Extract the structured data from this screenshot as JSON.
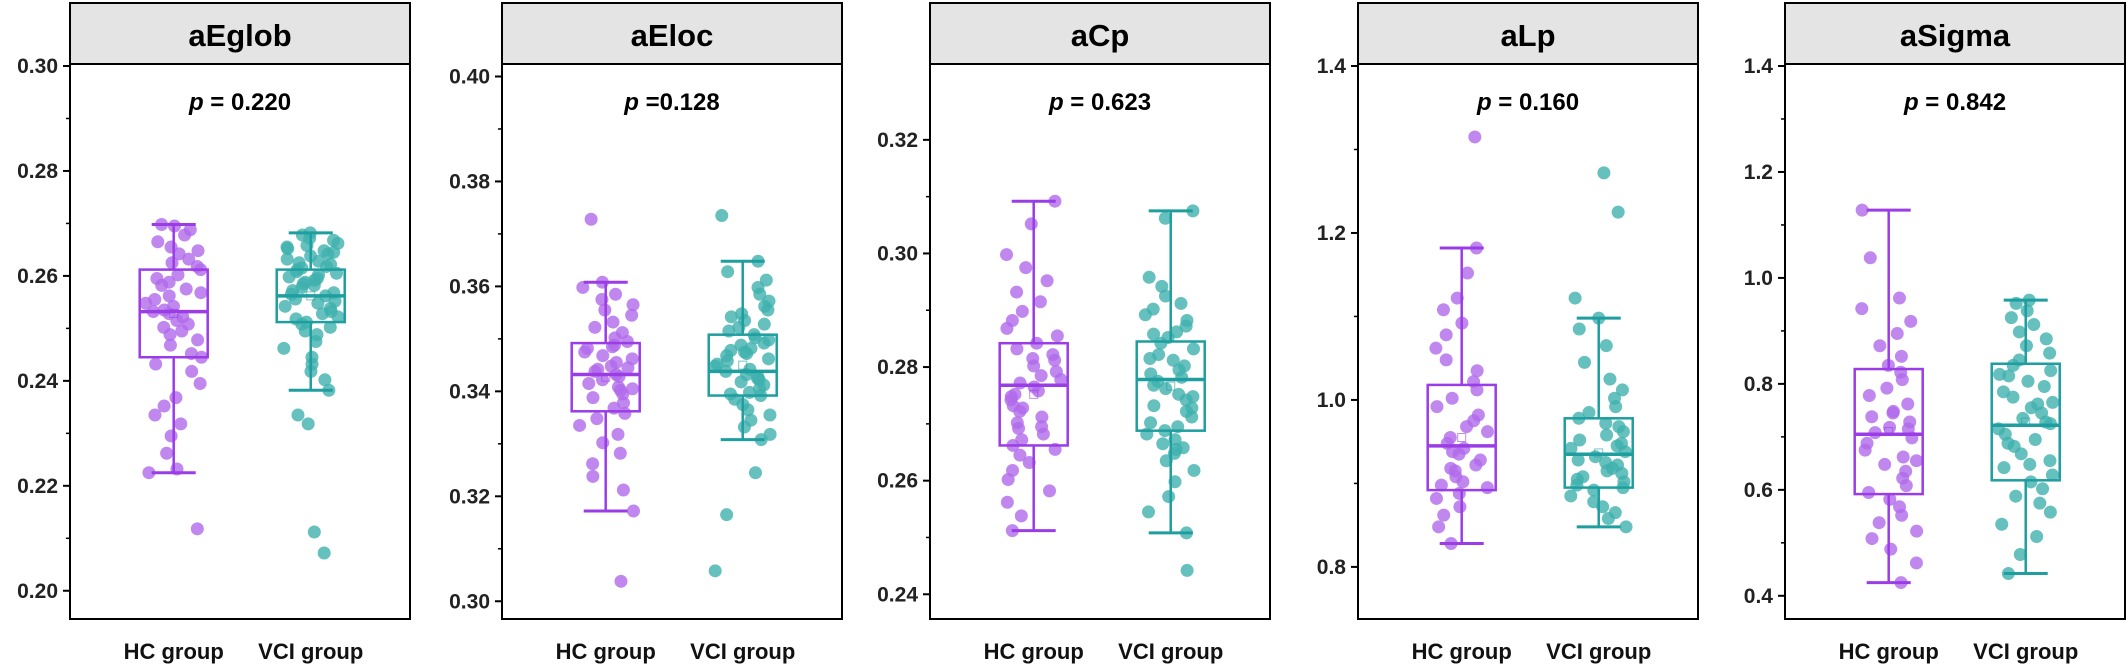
{
  "chart_data": [
    {
      "type": "box",
      "title": "aEglob",
      "p_label": "p",
      "p_value": "= 0.220",
      "categories": [
        "HC group",
        "VCI group"
      ],
      "ylim": [
        0.195,
        0.3
      ],
      "yticks": [
        "0.20",
        "0.22",
        "0.24",
        "0.26",
        "0.28",
        "0.30"
      ],
      "series": [
        {
          "q1": 0.2445,
          "median": 0.2532,
          "q3": 0.2612,
          "wlo": 0.2225,
          "whi": 0.2698,
          "points": [
            0.2118,
            0.2225,
            0.2232,
            0.2262,
            0.2295,
            0.2318,
            0.2335,
            0.2352,
            0.2368,
            0.2395,
            0.2418,
            0.2432,
            0.2445,
            0.2452,
            0.2468,
            0.2478,
            0.2488,
            0.2495,
            0.2502,
            0.2508,
            0.2515,
            0.2522,
            0.2528,
            0.2532,
            0.2535,
            0.2542,
            0.2548,
            0.2555,
            0.2562,
            0.2568,
            0.2575,
            0.2582,
            0.2588,
            0.2595,
            0.2602,
            0.2612,
            0.2618,
            0.2625,
            0.2632,
            0.2642,
            0.2648,
            0.2655,
            0.2665,
            0.2678,
            0.2688,
            0.2698,
            0.2695
          ]
        },
        {
          "q1": 0.2512,
          "median": 0.2562,
          "q3": 0.2612,
          "wlo": 0.2382,
          "whi": 0.2682,
          "points": [
            0.2072,
            0.2112,
            0.2318,
            0.2335,
            0.2382,
            0.2402,
            0.2418,
            0.2432,
            0.2445,
            0.2462,
            0.2475,
            0.2488,
            0.2495,
            0.2502,
            0.2508,
            0.2512,
            0.2518,
            0.2522,
            0.2528,
            0.2532,
            0.2538,
            0.2542,
            0.2548,
            0.2552,
            0.2556,
            0.2562,
            0.2565,
            0.2568,
            0.2572,
            0.2578,
            0.2582,
            0.2585,
            0.2588,
            0.2592,
            0.2598,
            0.2602,
            0.2605,
            0.2608,
            0.2612,
            0.2618,
            0.2622,
            0.2628,
            0.2632,
            0.2638,
            0.2642,
            0.2648,
            0.2652,
            0.2658,
            0.2662,
            0.2668,
            0.2672,
            0.2678,
            0.2682,
            0.2655,
            0.2645,
            0.2625,
            0.2615,
            0.2595
          ]
        }
      ]
    },
    {
      "type": "box",
      "title": "aEloc",
      "p_label": "p",
      "p_value": "=0.128",
      "categories": [
        "HC group",
        "VCI group"
      ],
      "ylim": [
        0.297,
        0.402
      ],
      "yticks": [
        "0.30",
        "0.32",
        "0.34",
        "0.36",
        "0.38",
        "0.40"
      ],
      "series": [
        {
          "q1": 0.3362,
          "median": 0.3432,
          "q3": 0.3492,
          "wlo": 0.3172,
          "whi": 0.3608,
          "points": [
            0.3038,
            0.3172,
            0.3212,
            0.3238,
            0.3262,
            0.3282,
            0.3302,
            0.3318,
            0.3335,
            0.3348,
            0.3358,
            0.3368,
            0.3378,
            0.3388,
            0.3395,
            0.3402,
            0.3408,
            0.3415,
            0.3422,
            0.3428,
            0.3432,
            0.3438,
            0.3442,
            0.3448,
            0.3455,
            0.3462,
            0.3468,
            0.3475,
            0.3482,
            0.3488,
            0.3495,
            0.3502,
            0.3512,
            0.3522,
            0.3532,
            0.3545,
            0.3555,
            0.3565,
            0.3575,
            0.3585,
            0.3598,
            0.3608,
            0.3728,
            0.3445,
            0.3405,
            0.3485
          ]
        },
        {
          "q1": 0.3392,
          "median": 0.3438,
          "q3": 0.3508,
          "wlo": 0.3308,
          "whi": 0.3648,
          "points": [
            0.3058,
            0.3165,
            0.3245,
            0.3308,
            0.3318,
            0.3332,
            0.3345,
            0.3355,
            0.3365,
            0.3375,
            0.3385,
            0.3392,
            0.3398,
            0.3405,
            0.3412,
            0.3418,
            0.3422,
            0.3428,
            0.3432,
            0.3438,
            0.3442,
            0.3448,
            0.3452,
            0.3458,
            0.3462,
            0.3468,
            0.3472,
            0.3478,
            0.3482,
            0.3488,
            0.3492,
            0.3498,
            0.3502,
            0.3508,
            0.3515,
            0.3522,
            0.3528,
            0.3535,
            0.3542,
            0.3548,
            0.3555,
            0.3562,
            0.3572,
            0.3585,
            0.3598,
            0.3612,
            0.3628,
            0.3648,
            0.3735,
            0.3425,
            0.3395,
            0.3475
          ]
        }
      ]
    },
    {
      "type": "box",
      "title": "aCp",
      "p_label": "p",
      "p_value": "= 0.623",
      "categories": [
        "HC group",
        "VCI group"
      ],
      "ylim": [
        0.236,
        0.333
      ],
      "yticks": [
        "0.24",
        "0.26",
        "0.28",
        "0.30",
        "0.32"
      ],
      "series": [
        {
          "q1": 0.2662,
          "median": 0.2768,
          "q3": 0.2842,
          "wlo": 0.2512,
          "whi": 0.3092,
          "points": [
            0.2512,
            0.2538,
            0.2562,
            0.2582,
            0.2602,
            0.2618,
            0.2632,
            0.2645,
            0.2655,
            0.2662,
            0.2672,
            0.2682,
            0.2692,
            0.2702,
            0.2712,
            0.2722,
            0.2732,
            0.2742,
            0.2752,
            0.2758,
            0.2765,
            0.2772,
            0.2778,
            0.2785,
            0.2792,
            0.2802,
            0.2812,
            0.2822,
            0.2832,
            0.2842,
            0.2855,
            0.2868,
            0.2882,
            0.2898,
            0.2915,
            0.2932,
            0.2952,
            0.2975,
            0.2998,
            0.3052,
            0.3092,
            0.2748,
            0.2728,
            0.2695,
            0.2815
          ]
        },
        {
          "q1": 0.2688,
          "median": 0.2778,
          "q3": 0.2845,
          "wlo": 0.2508,
          "whi": 0.3075,
          "points": [
            0.2442,
            0.2508,
            0.2545,
            0.2572,
            0.2598,
            0.2618,
            0.2635,
            0.2648,
            0.2658,
            0.2665,
            0.2672,
            0.2682,
            0.2688,
            0.2695,
            0.2702,
            0.2712,
            0.2722,
            0.2732,
            0.2742,
            0.2752,
            0.2762,
            0.2768,
            0.2775,
            0.2782,
            0.2788,
            0.2795,
            0.2802,
            0.2812,
            0.2822,
            0.2832,
            0.2842,
            0.2852,
            0.2862,
            0.2872,
            0.2882,
            0.2892,
            0.2902,
            0.2912,
            0.2925,
            0.2942,
            0.2958,
            0.3062,
            0.3075,
            0.2728,
            0.2748,
            0.2815,
            0.2655,
            0.2858
          ]
        }
      ]
    },
    {
      "type": "box",
      "title": "aLp",
      "p_label": "p",
      "p_value": "= 0.160",
      "categories": [
        "HC group",
        "VCI group"
      ],
      "ylim": [
        0.74,
        1.4
      ],
      "yticks": [
        "0.8",
        "1.0",
        "1.2",
        "1.4"
      ],
      "series": [
        {
          "q1": 0.892,
          "median": 0.945,
          "q3": 1.018,
          "wlo": 0.828,
          "whi": 1.182,
          "points": [
            0.828,
            0.848,
            0.862,
            0.872,
            0.882,
            0.888,
            0.895,
            0.902,
            0.908,
            0.915,
            0.922,
            0.928,
            0.935,
            0.942,
            0.948,
            0.955,
            0.962,
            0.968,
            0.975,
            0.982,
            0.992,
            1.002,
            1.012,
            1.022,
            1.035,
            1.048,
            1.062,
            1.078,
            1.092,
            1.108,
            1.122,
            1.152,
            1.182,
            1.315,
            0.938,
            0.918,
            0.898
          ]
        },
        {
          "q1": 0.895,
          "median": 0.935,
          "q3": 0.978,
          "wlo": 0.848,
          "whi": 1.098,
          "points": [
            0.848,
            0.858,
            0.865,
            0.872,
            0.878,
            0.885,
            0.892,
            0.898,
            0.902,
            0.908,
            0.912,
            0.918,
            0.922,
            0.928,
            0.932,
            0.938,
            0.942,
            0.948,
            0.952,
            0.958,
            0.962,
            0.968,
            0.972,
            0.978,
            0.985,
            0.992,
            1.002,
            1.012,
            1.025,
            1.045,
            1.065,
            1.085,
            1.098,
            1.122,
            1.225,
            1.272,
            0.915,
            0.905,
            0.945,
            0.925,
            0.895
          ]
        }
      ]
    },
    {
      "type": "box",
      "title": "aSigma",
      "p_label": "p",
      "p_value": "= 0.842",
      "categories": [
        "HC group",
        "VCI group"
      ],
      "ylim": [
        0.36,
        1.4
      ],
      "yticks": [
        "0.4",
        "0.6",
        "0.8",
        "1.0",
        "1.2",
        "1.4"
      ],
      "series": [
        {
          "q1": 0.592,
          "median": 0.705,
          "q3": 0.828,
          "wlo": 0.425,
          "whi": 1.128,
          "points": [
            0.425,
            0.462,
            0.488,
            0.508,
            0.522,
            0.538,
            0.552,
            0.568,
            0.582,
            0.595,
            0.608,
            0.622,
            0.635,
            0.648,
            0.662,
            0.675,
            0.688,
            0.698,
            0.708,
            0.718,
            0.728,
            0.738,
            0.748,
            0.762,
            0.778,
            0.792,
            0.808,
            0.822,
            0.835,
            0.852,
            0.872,
            0.895,
            0.918,
            0.942,
            0.962,
            1.038,
            1.128,
            0.715,
            0.655,
            0.745
          ]
        },
        {
          "q1": 0.618,
          "median": 0.722,
          "q3": 0.838,
          "wlo": 0.442,
          "whi": 0.958,
          "points": [
            0.442,
            0.478,
            0.512,
            0.535,
            0.558,
            0.575,
            0.588,
            0.602,
            0.615,
            0.628,
            0.642,
            0.655,
            0.668,
            0.682,
            0.695,
            0.705,
            0.715,
            0.725,
            0.735,
            0.745,
            0.755,
            0.765,
            0.775,
            0.785,
            0.795,
            0.805,
            0.815,
            0.825,
            0.835,
            0.845,
            0.858,
            0.872,
            0.885,
            0.898,
            0.912,
            0.925,
            0.938,
            0.952,
            0.958,
            0.728,
            0.688,
            0.762,
            0.648,
            0.818
          ]
        }
      ]
    }
  ],
  "colors": {
    "hc": "#9b3de6",
    "vci": "#1f9ea0",
    "hc_point": "#b06aeb",
    "vci_point": "#3fb0ae",
    "title_bg": "#e4e4e4"
  }
}
